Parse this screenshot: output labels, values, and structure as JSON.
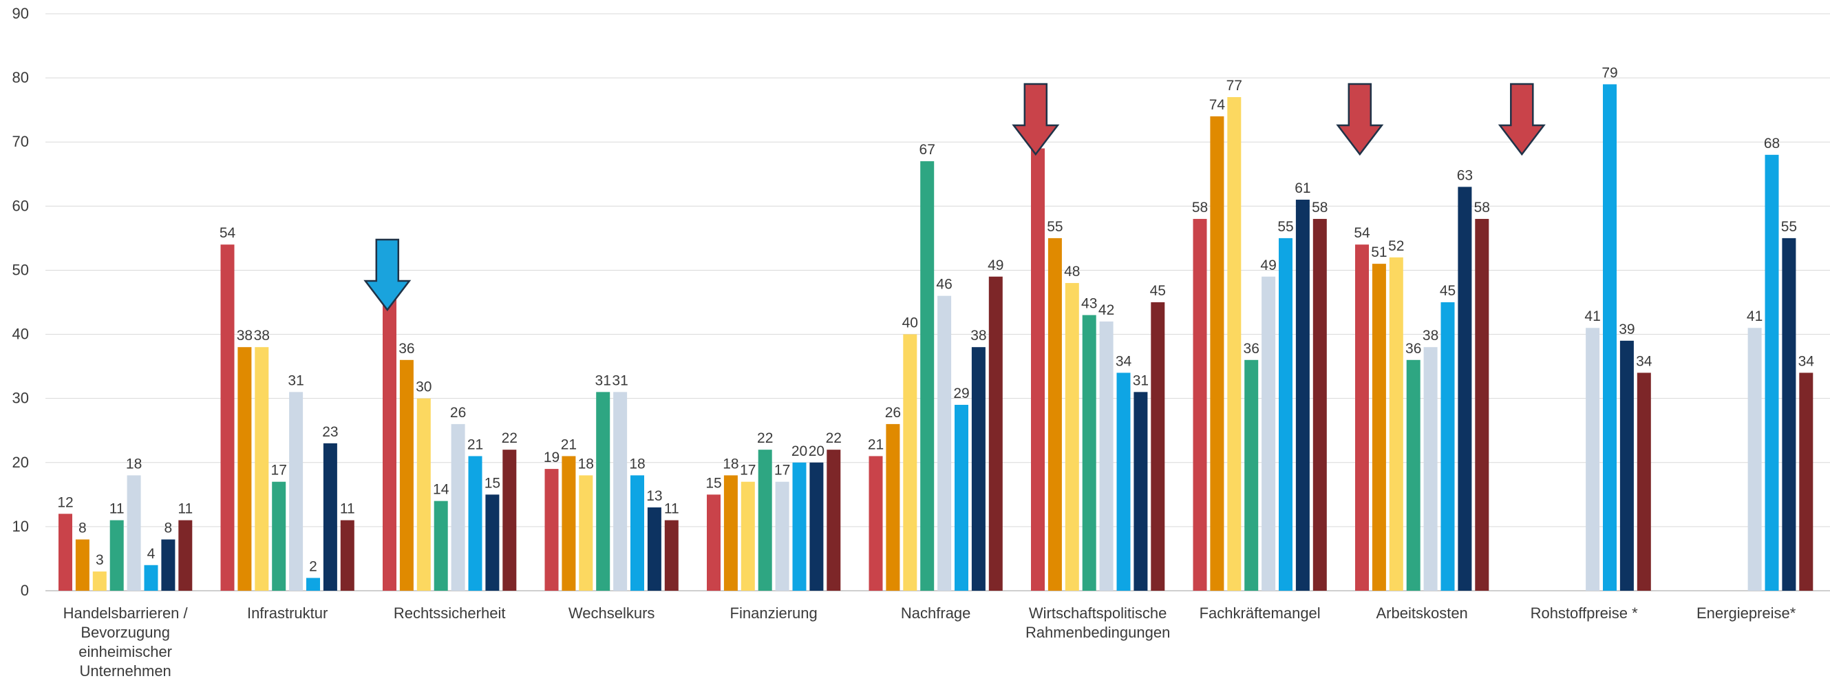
{
  "chart_data": {
    "type": "bar",
    "ylim": [
      0,
      90
    ],
    "yticks": [
      0,
      10,
      20,
      30,
      40,
      50,
      60,
      70,
      80,
      90
    ],
    "grid": true,
    "categories": [
      [
        "Handelsbarrieren /",
        "Bevorzugung",
        "einheimischer",
        "Unternehmen"
      ],
      [
        "Infrastruktur"
      ],
      [
        "Rechtssicherheit"
      ],
      [
        "Wechselkurs"
      ],
      [
        "Finanzierung"
      ],
      [
        "Nachfrage"
      ],
      [
        "Wirtschaftspolitische",
        "Rahmenbedingungen"
      ],
      [
        "Fachkräftemangel"
      ],
      [
        "Arbeitskosten"
      ],
      [
        "Rohstoffpreise *"
      ],
      [
        "Energiepreise*"
      ]
    ],
    "series": [
      {
        "color": "#c9434a",
        "values": [
          12,
          54,
          48,
          19,
          15,
          21,
          69,
          58,
          54,
          null,
          null
        ]
      },
      {
        "color": "#e08a00",
        "values": [
          8,
          38,
          36,
          21,
          18,
          26,
          55,
          74,
          51,
          null,
          null
        ]
      },
      {
        "color": "#fcd860",
        "values": [
          3,
          38,
          30,
          18,
          17,
          40,
          48,
          77,
          52,
          null,
          null
        ]
      },
      {
        "color": "#2ea682",
        "values": [
          11,
          17,
          14,
          31,
          22,
          67,
          43,
          36,
          36,
          null,
          null
        ]
      },
      {
        "color": "#ccd8e6",
        "values": [
          18,
          31,
          26,
          31,
          17,
          46,
          42,
          49,
          38,
          41,
          41
        ]
      },
      {
        "color": "#0ea5e4",
        "values": [
          4,
          2,
          21,
          18,
          20,
          29,
          34,
          55,
          45,
          79,
          68
        ]
      },
      {
        "color": "#0d3361",
        "values": [
          8,
          23,
          15,
          13,
          20,
          38,
          31,
          61,
          63,
          39,
          55
        ]
      },
      {
        "color": "#7d2628",
        "values": [
          11,
          11,
          22,
          11,
          22,
          49,
          45,
          58,
          58,
          34,
          34
        ]
      }
    ],
    "annotations": [
      {
        "type": "arrow-down",
        "color": "#1aa3dd",
        "category_index": 1
      },
      {
        "type": "arrow-down",
        "color": "#c9434a",
        "category_index": 5
      },
      {
        "type": "arrow-down",
        "color": "#c9434a",
        "category_index": 7
      },
      {
        "type": "arrow-down",
        "color": "#c9434a",
        "category_index": 8
      }
    ]
  }
}
